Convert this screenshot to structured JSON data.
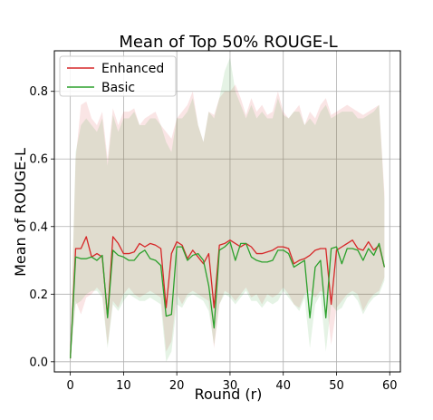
{
  "chart_data": {
    "type": "line",
    "title": "Mean of Top 50% ROUGE-L",
    "xlabel": "Round (r)",
    "ylabel": "Mean of ROUGE-L",
    "xlim": [
      -3,
      62
    ],
    "ylim": [
      -0.03,
      0.92
    ],
    "xticks": [
      0,
      10,
      20,
      30,
      40,
      50,
      60
    ],
    "yticks": [
      0.0,
      0.2,
      0.4,
      0.6,
      0.8
    ],
    "ytick_labels": [
      "0.0",
      "0.2",
      "0.4",
      "0.6",
      "0.8"
    ],
    "grid": true,
    "legend": "top-left",
    "x": [
      0,
      1,
      2,
      3,
      4,
      5,
      6,
      7,
      8,
      9,
      10,
      11,
      12,
      13,
      14,
      15,
      16,
      17,
      18,
      19,
      20,
      21,
      22,
      23,
      24,
      25,
      26,
      27,
      28,
      29,
      30,
      31,
      32,
      33,
      34,
      35,
      36,
      37,
      38,
      39,
      40,
      41,
      42,
      43,
      44,
      45,
      46,
      47,
      48,
      49,
      50,
      51,
      52,
      53,
      54,
      55,
      56,
      57,
      58,
      59
    ],
    "series": [
      {
        "name": "Enhanced",
        "color": "#d62728",
        "values": [
          0.01,
          0.335,
          0.335,
          0.37,
          0.31,
          0.32,
          0.31,
          0.135,
          0.37,
          0.35,
          0.32,
          0.32,
          0.325,
          0.35,
          0.34,
          0.35,
          0.345,
          0.335,
          0.16,
          0.32,
          0.355,
          0.345,
          0.305,
          0.33,
          0.31,
          0.29,
          0.32,
          0.16,
          0.345,
          0.35,
          0.36,
          0.35,
          0.34,
          0.35,
          0.34,
          0.32,
          0.32,
          0.325,
          0.33,
          0.34,
          0.34,
          0.335,
          0.29,
          0.3,
          0.305,
          0.315,
          0.33,
          0.335,
          0.335,
          0.17,
          0.33,
          0.34,
          0.35,
          0.36,
          0.335,
          0.33,
          0.355,
          0.33,
          0.345,
          0.28
        ],
        "upper": [
          0.03,
          0.6,
          0.76,
          0.77,
          0.72,
          0.7,
          0.74,
          0.6,
          0.75,
          0.7,
          0.74,
          0.74,
          0.75,
          0.7,
          0.72,
          0.73,
          0.74,
          0.7,
          0.68,
          0.66,
          0.72,
          0.74,
          0.76,
          0.8,
          0.7,
          0.65,
          0.74,
          0.73,
          0.78,
          0.8,
          0.8,
          0.82,
          0.78,
          0.73,
          0.78,
          0.74,
          0.76,
          0.73,
          0.74,
          0.8,
          0.74,
          0.72,
          0.74,
          0.76,
          0.7,
          0.74,
          0.72,
          0.76,
          0.78,
          0.73,
          0.74,
          0.75,
          0.76,
          0.75,
          0.74,
          0.73,
          0.74,
          0.75,
          0.76,
          0.5
        ],
        "lower": [
          0.0,
          0.18,
          0.14,
          0.19,
          0.2,
          0.22,
          0.2,
          0.05,
          0.18,
          0.16,
          0.2,
          0.22,
          0.2,
          0.19,
          0.2,
          0.21,
          0.2,
          0.19,
          0.03,
          0.06,
          0.2,
          0.17,
          0.2,
          0.21,
          0.2,
          0.19,
          0.18,
          0.04,
          0.17,
          0.21,
          0.2,
          0.18,
          0.2,
          0.22,
          0.19,
          0.2,
          0.17,
          0.2,
          0.19,
          0.2,
          0.22,
          0.2,
          0.17,
          0.16,
          0.2,
          0.21,
          0.19,
          0.21,
          0.2,
          0.05,
          0.16,
          0.18,
          0.2,
          0.21,
          0.2,
          0.15,
          0.18,
          0.2,
          0.21,
          0.25
        ]
      },
      {
        "name": "Basic",
        "color": "#2ca02c",
        "values": [
          0.01,
          0.31,
          0.305,
          0.305,
          0.31,
          0.3,
          0.315,
          0.13,
          0.33,
          0.315,
          0.31,
          0.3,
          0.3,
          0.32,
          0.33,
          0.305,
          0.3,
          0.285,
          0.135,
          0.14,
          0.34,
          0.34,
          0.3,
          0.315,
          0.32,
          0.3,
          0.225,
          0.1,
          0.33,
          0.34,
          0.355,
          0.3,
          0.35,
          0.35,
          0.31,
          0.3,
          0.295,
          0.295,
          0.3,
          0.33,
          0.33,
          0.32,
          0.28,
          0.29,
          0.3,
          0.13,
          0.28,
          0.3,
          0.13,
          0.335,
          0.34,
          0.29,
          0.335,
          0.335,
          0.33,
          0.3,
          0.335,
          0.315,
          0.35,
          0.28
        ],
        "upper": [
          0.03,
          0.62,
          0.7,
          0.72,
          0.7,
          0.68,
          0.72,
          0.58,
          0.73,
          0.68,
          0.72,
          0.72,
          0.74,
          0.7,
          0.7,
          0.72,
          0.72,
          0.7,
          0.65,
          0.62,
          0.72,
          0.72,
          0.74,
          0.78,
          0.7,
          0.65,
          0.74,
          0.72,
          0.78,
          0.86,
          0.9,
          0.8,
          0.76,
          0.72,
          0.76,
          0.72,
          0.74,
          0.72,
          0.72,
          0.78,
          0.73,
          0.72,
          0.74,
          0.74,
          0.7,
          0.72,
          0.7,
          0.74,
          0.76,
          0.72,
          0.73,
          0.74,
          0.74,
          0.74,
          0.72,
          0.72,
          0.73,
          0.74,
          0.76,
          0.48
        ],
        "lower": [
          0.0,
          0.17,
          0.18,
          0.2,
          0.21,
          0.21,
          0.19,
          0.04,
          0.17,
          0.15,
          0.18,
          0.2,
          0.19,
          0.18,
          0.18,
          0.19,
          0.18,
          0.17,
          0.0,
          0.03,
          0.17,
          0.16,
          0.19,
          0.2,
          0.19,
          0.18,
          0.15,
          0.05,
          0.17,
          0.2,
          0.19,
          0.17,
          0.19,
          0.21,
          0.18,
          0.18,
          0.16,
          0.18,
          0.17,
          0.18,
          0.21,
          0.19,
          0.17,
          0.15,
          0.19,
          0.04,
          0.17,
          0.2,
          0.03,
          0.17,
          0.15,
          0.16,
          0.19,
          0.2,
          0.18,
          0.14,
          0.17,
          0.19,
          0.2,
          0.24
        ]
      }
    ]
  }
}
